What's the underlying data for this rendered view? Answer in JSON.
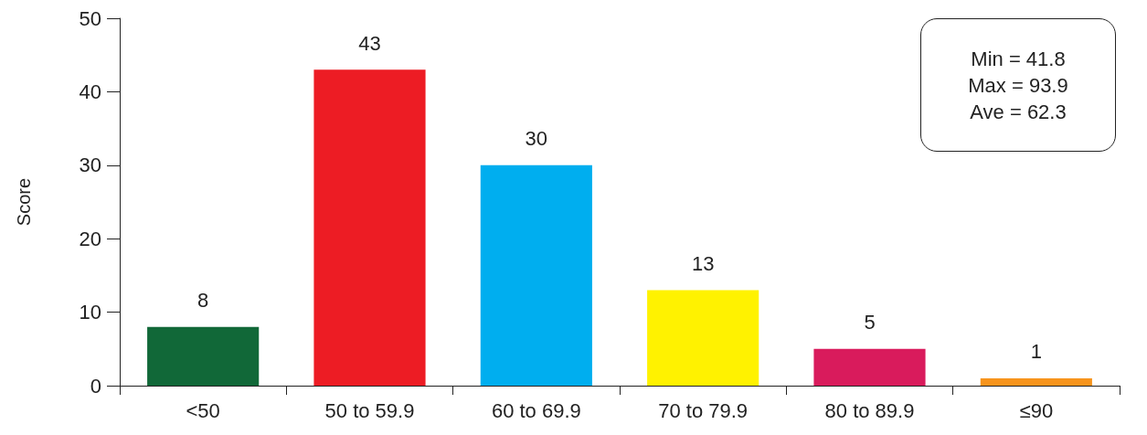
{
  "chart_data": {
    "type": "bar",
    "ylabel": "Score",
    "categories": [
      "<50",
      "50 to 59.9",
      "60 to 69.9",
      "70 to 79.9",
      "80 to 89.9",
      "≤90"
    ],
    "values": [
      8,
      43,
      30,
      13,
      5,
      1
    ],
    "colors": [
      "#116838",
      "#ed1c24",
      "#00aeef",
      "#fff200",
      "#d91b5c",
      "#f7941d"
    ],
    "ylim": [
      0,
      50
    ],
    "yticks": [
      0,
      10,
      20,
      30,
      40,
      50
    ],
    "grid": false,
    "data_labels": true,
    "annotations": [
      "Min = 41.8",
      "Max = 93.9",
      "Ave = 62.3"
    ]
  }
}
